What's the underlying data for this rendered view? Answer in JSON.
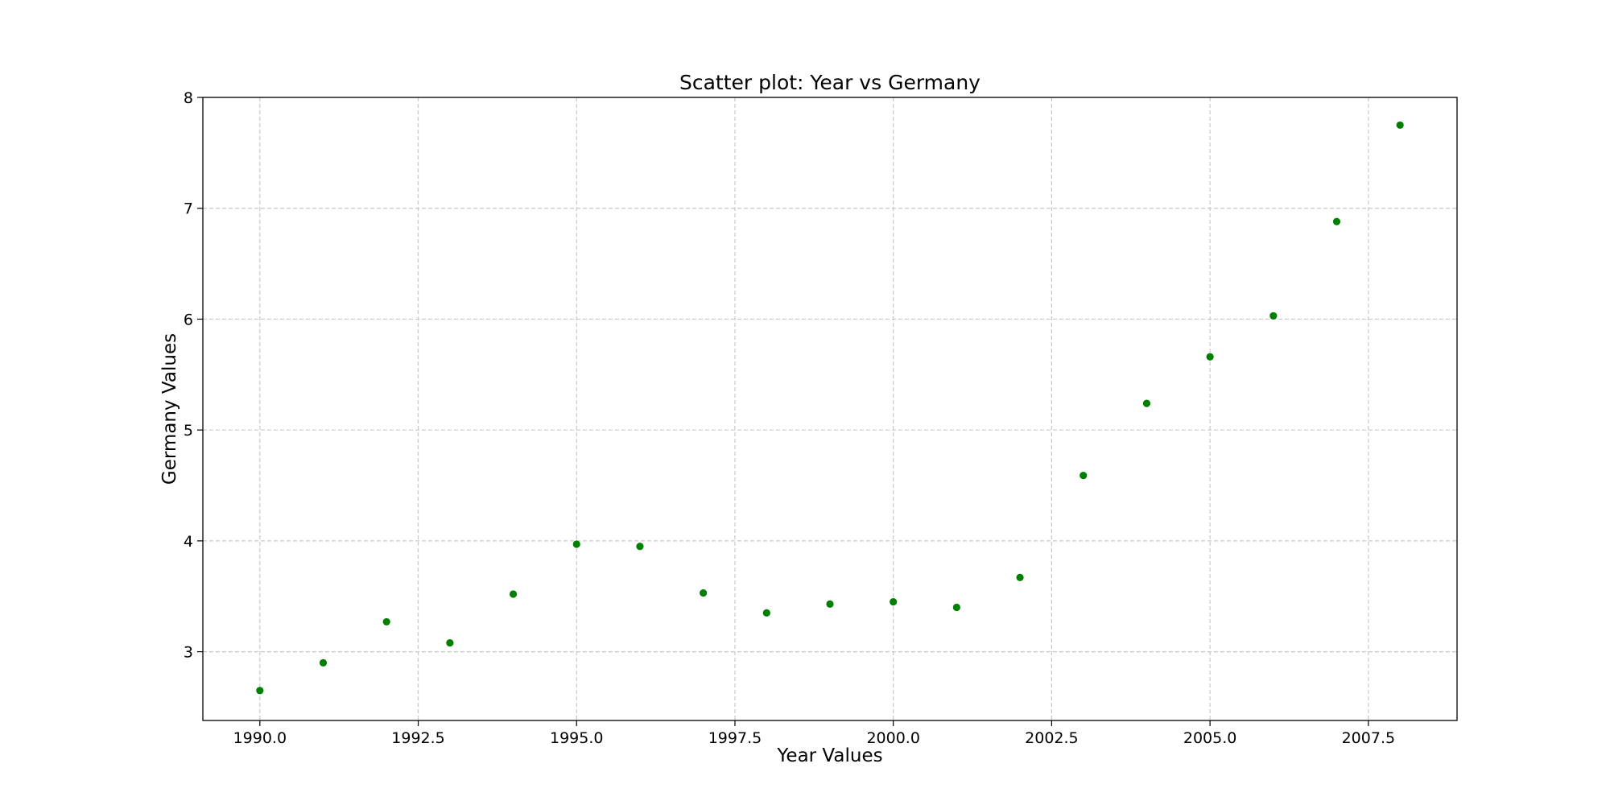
{
  "chart_data": {
    "type": "scatter",
    "title": "Scatter plot: Year vs Germany",
    "xlabel": "Year Values",
    "ylabel": "Germany Values",
    "xlim": [
      1989.1,
      2008.9
    ],
    "ylim": [
      2.38,
      8.0
    ],
    "x_ticks": [
      1990.0,
      1992.5,
      1995.0,
      1997.5,
      2000.0,
      2002.5,
      2005.0,
      2007.5
    ],
    "x_tick_labels": [
      "1990.0",
      "1992.5",
      "1995.0",
      "1997.5",
      "2000.0",
      "2002.5",
      "2005.0",
      "2007.5"
    ],
    "y_ticks": [
      3,
      4,
      5,
      6,
      7,
      8
    ],
    "y_tick_labels": [
      "3",
      "4",
      "5",
      "6",
      "7",
      "8"
    ],
    "grid": true,
    "marker_color": "#008000",
    "series": [
      {
        "name": "Germany",
        "x": [
          1990,
          1991,
          1992,
          1993,
          1994,
          1995,
          1996,
          1997,
          1998,
          1999,
          2000,
          2001,
          2002,
          2003,
          2004,
          2005,
          2006,
          2007,
          2008
        ],
        "y": [
          2.65,
          2.9,
          3.27,
          3.08,
          3.52,
          3.97,
          3.95,
          3.53,
          3.35,
          3.43,
          3.45,
          3.4,
          3.67,
          4.59,
          5.24,
          5.66,
          6.03,
          6.88,
          7.75
        ]
      }
    ]
  }
}
